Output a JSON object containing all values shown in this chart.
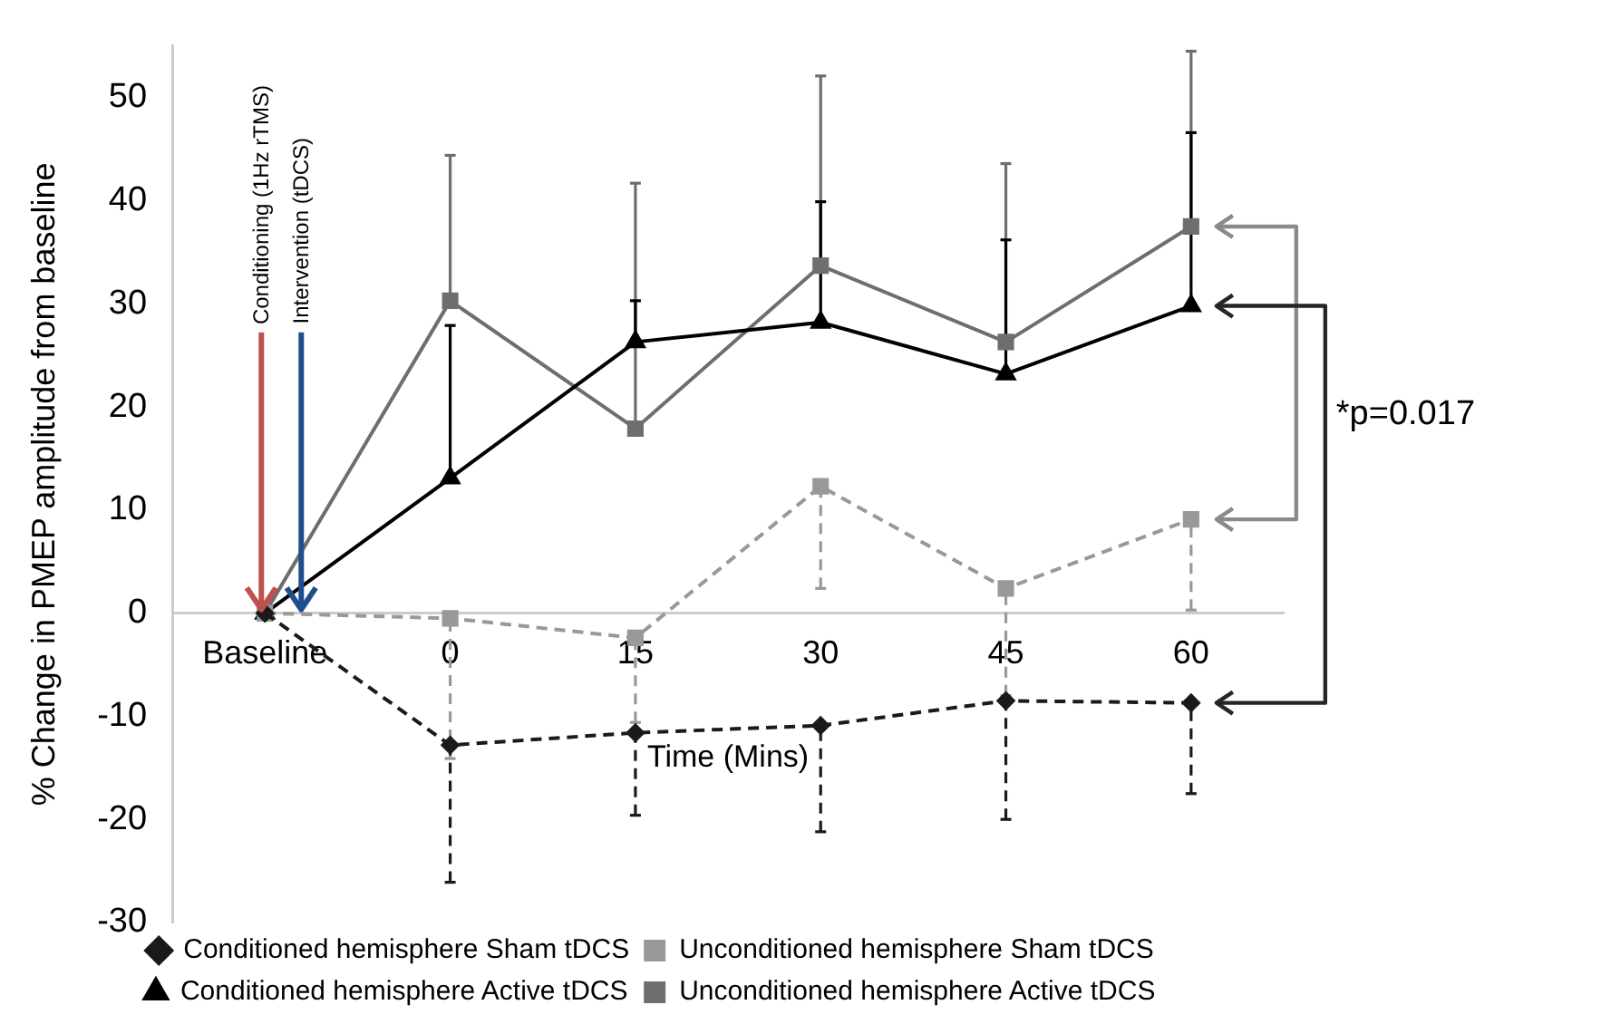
{
  "chart_data": {
    "type": "line",
    "categories": [
      "Baseline",
      "0",
      "15",
      "30",
      "45",
      "60"
    ],
    "xlabel": "Time (Mins)",
    "ylabel": "% Change in PMEP amplitude from baseline",
    "ylim": [
      -30,
      55
    ],
    "yticks": [
      -30,
      -20,
      -10,
      0,
      10,
      20,
      30,
      40,
      50
    ],
    "grid": false,
    "legend": "bottom",
    "annotations": [
      {
        "text": "Conditioning (1Hz rTMS)",
        "x": "Baseline",
        "y": 0
      },
      {
        "text": "Intervention (tDCS)",
        "x": "Baseline",
        "y": 0
      },
      "*p=0.017"
    ],
    "series": [
      {
        "name": "Conditioned hemisphere Sham tDCS",
        "color": "#1a1a1a",
        "marker": "diamond",
        "line_style": "dashed",
        "values": [
          0,
          -12.8,
          -11.6,
          -10.9,
          -8.5,
          -8.7
        ],
        "errors": [
          null,
          [
            -26.1,
            -12.8
          ],
          [
            -19.6,
            -11.6
          ],
          [
            -21.2,
            -10.9
          ],
          [
            -20.0,
            -8.5
          ],
          [
            -17.5,
            -8.7
          ]
        ]
      },
      {
        "name": "Unconditioned hemisphere Sham tDCS",
        "color": "#999999",
        "marker": "square",
        "line_style": "dashed",
        "values": [
          0,
          -0.5,
          -2.4,
          12.3,
          2.4,
          9.1
        ],
        "errors": [
          null,
          [
            -14.1,
            -0.5
          ],
          [
            -10.6,
            -2.4
          ],
          [
            2.4,
            12.3
          ],
          [
            -8.0,
            2.4
          ],
          [
            0.3,
            9.1
          ]
        ]
      },
      {
        "name": "Conditioned hemisphere Active tDCS",
        "color": "#000000",
        "marker": "triangle",
        "line_style": "solid",
        "values": [
          0,
          13.1,
          26.3,
          28.2,
          23.2,
          29.8
        ],
        "errors": [
          null,
          [
            13.1,
            27.9
          ],
          [
            26.3,
            30.3
          ],
          [
            28.2,
            39.9
          ],
          [
            23.2,
            36.2
          ],
          [
            29.8,
            46.6
          ]
        ]
      },
      {
        "name": "Unconditioned hemisphere Active tDCS",
        "color": "#6e6e6e",
        "marker": "square",
        "line_style": "solid",
        "values": [
          0,
          30.3,
          17.9,
          33.7,
          26.3,
          37.5
        ],
        "errors": [
          null,
          [
            30.3,
            44.4
          ],
          [
            17.9,
            41.7
          ],
          [
            33.7,
            52.1
          ],
          [
            26.3,
            43.6
          ],
          [
            37.5,
            54.5
          ]
        ]
      }
    ]
  }
}
